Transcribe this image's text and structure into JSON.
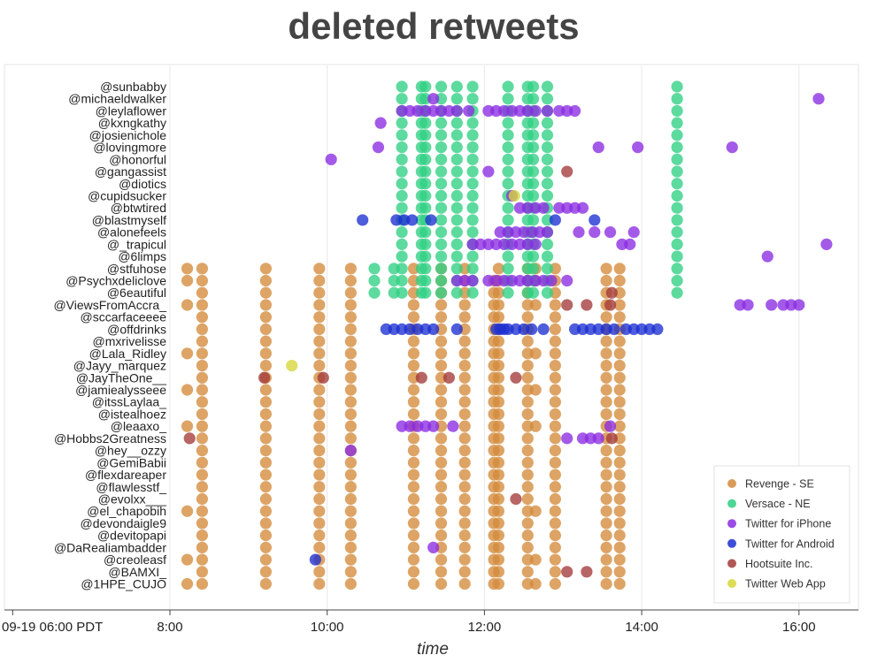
{
  "chart_data": {
    "type": "scatter",
    "title": "deleted retweets",
    "xlabel": "time",
    "ylabel": "",
    "x_range_hours": [
      5.9,
      16.75
    ],
    "x_ticks": [
      {
        "value": 6,
        "label": "09-19 06:00 PDT"
      },
      {
        "value": 8,
        "label": "8:00"
      },
      {
        "value": 10,
        "label": "10:00"
      },
      {
        "value": 12,
        "label": "12:00"
      },
      {
        "value": 14,
        "label": "14:00"
      },
      {
        "value": 16,
        "label": "16:00"
      }
    ],
    "grid": true,
    "legend_position": "bottom-right",
    "accounts": [
      "@sunbabby",
      "@michaeldwalker",
      "@leylaflower",
      "@kxngkathy",
      "@josienichole",
      "@lovingmore",
      "@honorful",
      "@gangassist",
      "@diotics",
      "@cupidsucker",
      "@btwtired",
      "@blastmyself",
      "@alonefeels",
      "@_trapicul",
      "@6limps",
      "@stfuhose",
      "@Psychxdeliclove",
      "@6eautiful",
      "@ViewsFromAccra_",
      "@sccarfaceeee",
      "@offdrinks",
      "@mxrivelisse",
      "@Lala_Ridley",
      "@Jayy_marquez",
      "@JayTheOne__",
      "@jamiealysseee",
      "@itssLaylaa_",
      "@istealhoez",
      "@leaaxo_",
      "@Hobbs2Greatness",
      "@hey__ozzy",
      "@GemiBabii",
      "@flexdareaper",
      "@flawlesstf_",
      "@evolxx___",
      "@el_chapobih",
      "@devondaigle9",
      "@devitopapi",
      "@DaRealiambadder",
      "@creoleasf",
      "@BAMXI_",
      "@1HPE_CUJO"
    ],
    "series": [
      {
        "name": "Revenge - SE",
        "color": "#d48a3b",
        "times": [
          8.22,
          8.41,
          9.22,
          9.9,
          10.3,
          11.1,
          11.45,
          11.75,
          12.12,
          12.18,
          12.55,
          12.65,
          12.9,
          13.55,
          13.72
        ],
        "accounts_from": 15,
        "accounts_to": 41,
        "skip_pairs": [
          [
            15,
            12.12
          ],
          [
            17,
            8.22
          ],
          [
            17,
            12.65
          ],
          [
            19,
            8.22
          ],
          [
            19,
            12.65
          ],
          [
            20,
            8.22
          ],
          [
            20,
            12.65
          ],
          [
            21,
            8.22
          ],
          [
            21,
            12.65
          ],
          [
            23,
            8.22
          ],
          [
            23,
            12.65
          ],
          [
            24,
            8.22
          ],
          [
            24,
            12.65
          ],
          [
            26,
            8.22
          ],
          [
            26,
            12.65
          ],
          [
            27,
            8.22
          ],
          [
            27,
            12.65
          ],
          [
            29,
            8.22
          ],
          [
            29,
            12.65
          ],
          [
            30,
            8.22
          ],
          [
            30,
            12.65
          ],
          [
            31,
            8.22
          ],
          [
            31,
            12.65
          ],
          [
            32,
            8.22
          ],
          [
            32,
            12.65
          ],
          [
            33,
            8.22
          ],
          [
            33,
            12.65
          ],
          [
            34,
            8.22
          ],
          [
            34,
            12.65
          ],
          [
            36,
            8.22
          ],
          [
            36,
            12.65
          ],
          [
            37,
            8.22
          ],
          [
            37,
            12.65
          ],
          [
            38,
            8.22
          ],
          [
            38,
            12.65
          ],
          [
            40,
            8.22
          ],
          [
            40,
            12.65
          ]
        ]
      },
      {
        "name": "Versace - NE",
        "color": "#2fcf83",
        "times": [
          10.95,
          11.2,
          11.25,
          11.45,
          11.65,
          11.85,
          12.3,
          12.55,
          12.62,
          12.8,
          14.45
        ],
        "accounts_from": 0,
        "accounts_to": 17,
        "extra_times_lower": [
          10.6,
          10.85
        ]
      },
      {
        "name": "Twitter for iPhone",
        "color": "#8a2be2",
        "points": [
          [
            16.25,
            1
          ],
          [
            11.35,
            1
          ],
          [
            10.95,
            2
          ],
          [
            11.05,
            2
          ],
          [
            11.15,
            2
          ],
          [
            11.25,
            2
          ],
          [
            11.35,
            2
          ],
          [
            11.45,
            2
          ],
          [
            11.55,
            2
          ],
          [
            11.65,
            2
          ],
          [
            11.8,
            2
          ],
          [
            12.05,
            2
          ],
          [
            12.15,
            2
          ],
          [
            12.25,
            2
          ],
          [
            12.35,
            2
          ],
          [
            12.45,
            2
          ],
          [
            12.55,
            2
          ],
          [
            12.65,
            2
          ],
          [
            12.8,
            2
          ],
          [
            12.95,
            2
          ],
          [
            13.05,
            2
          ],
          [
            13.15,
            2
          ],
          [
            10.68,
            3
          ],
          [
            10.65,
            5
          ],
          [
            13.45,
            5
          ],
          [
            13.95,
            5
          ],
          [
            15.15,
            5
          ],
          [
            10.05,
            6
          ],
          [
            12.05,
            7
          ],
          [
            12.35,
            9
          ],
          [
            12.45,
            10
          ],
          [
            12.55,
            10
          ],
          [
            12.65,
            10
          ],
          [
            12.75,
            10
          ],
          [
            12.95,
            10
          ],
          [
            13.05,
            10
          ],
          [
            13.15,
            10
          ],
          [
            13.25,
            10
          ],
          [
            12.2,
            12
          ],
          [
            12.3,
            12
          ],
          [
            12.4,
            12
          ],
          [
            12.5,
            12
          ],
          [
            12.6,
            12
          ],
          [
            12.7,
            12
          ],
          [
            12.8,
            12
          ],
          [
            13.2,
            12
          ],
          [
            13.4,
            12
          ],
          [
            13.6,
            12
          ],
          [
            13.9,
            12
          ],
          [
            11.85,
            13
          ],
          [
            11.95,
            13
          ],
          [
            12.05,
            13
          ],
          [
            12.15,
            13
          ],
          [
            12.25,
            13
          ],
          [
            12.35,
            13
          ],
          [
            12.45,
            13
          ],
          [
            12.55,
            13
          ],
          [
            12.65,
            13
          ],
          [
            13.75,
            13
          ],
          [
            13.85,
            13
          ],
          [
            16.35,
            13
          ],
          [
            15.6,
            14
          ],
          [
            11.65,
            16
          ],
          [
            11.75,
            16
          ],
          [
            11.85,
            16
          ],
          [
            12.05,
            16
          ],
          [
            12.15,
            16
          ],
          [
            12.25,
            16
          ],
          [
            12.35,
            16
          ],
          [
            12.45,
            16
          ],
          [
            12.55,
            16
          ],
          [
            12.65,
            16
          ],
          [
            12.75,
            16
          ],
          [
            12.85,
            16
          ],
          [
            13.05,
            16
          ],
          [
            15.25,
            18
          ],
          [
            15.35,
            18
          ],
          [
            15.65,
            18
          ],
          [
            15.8,
            18
          ],
          [
            15.9,
            18
          ],
          [
            16.0,
            18
          ],
          [
            10.95,
            28
          ],
          [
            11.05,
            28
          ],
          [
            11.15,
            28
          ],
          [
            11.25,
            28
          ],
          [
            11.35,
            28
          ],
          [
            11.6,
            28
          ],
          [
            13.6,
            28
          ],
          [
            13.05,
            29
          ],
          [
            13.25,
            29
          ],
          [
            13.35,
            29
          ],
          [
            13.45,
            29
          ],
          [
            10.3,
            30
          ],
          [
            11.35,
            38
          ]
        ]
      },
      {
        "name": "Twitter for Android",
        "color": "#1c2fd1",
        "points": [
          [
            10.45,
            11
          ],
          [
            10.88,
            11
          ],
          [
            10.98,
            11
          ],
          [
            11.08,
            11
          ],
          [
            11.32,
            11
          ],
          [
            12.9,
            11
          ],
          [
            13.4,
            11
          ],
          [
            10.75,
            20
          ],
          [
            10.85,
            20
          ],
          [
            10.95,
            20
          ],
          [
            11.05,
            20
          ],
          [
            11.15,
            20
          ],
          [
            11.25,
            20
          ],
          [
            11.35,
            20
          ],
          [
            11.65,
            20
          ],
          [
            12.15,
            20
          ],
          [
            12.2,
            20
          ],
          [
            12.25,
            20
          ],
          [
            12.3,
            20
          ],
          [
            12.4,
            20
          ],
          [
            12.5,
            20
          ],
          [
            12.6,
            20
          ],
          [
            12.75,
            20
          ],
          [
            13.15,
            20
          ],
          [
            13.25,
            20
          ],
          [
            13.35,
            20
          ],
          [
            13.45,
            20
          ],
          [
            13.55,
            20
          ],
          [
            13.65,
            20
          ],
          [
            13.8,
            20
          ],
          [
            13.9,
            20
          ],
          [
            14.0,
            20
          ],
          [
            14.1,
            20
          ],
          [
            14.2,
            20
          ],
          [
            9.85,
            39
          ]
        ]
      },
      {
        "name": "Hootsuite Inc.",
        "color": "#a33a3a",
        "points": [
          [
            13.05,
            7
          ],
          [
            13.62,
            17
          ],
          [
            13.05,
            18
          ],
          [
            13.3,
            18
          ],
          [
            13.6,
            18
          ],
          [
            9.2,
            24
          ],
          [
            9.95,
            24
          ],
          [
            11.2,
            24
          ],
          [
            11.55,
            24
          ],
          [
            12.4,
            24
          ],
          [
            8.25,
            29
          ],
          [
            13.62,
            29
          ],
          [
            12.4,
            34
          ],
          [
            13.05,
            40
          ],
          [
            13.3,
            40
          ]
        ]
      },
      {
        "name": "Twitter Web App",
        "color": "#d6d63a",
        "points": [
          [
            12.38,
            9
          ],
          [
            9.55,
            23
          ]
        ]
      }
    ]
  }
}
